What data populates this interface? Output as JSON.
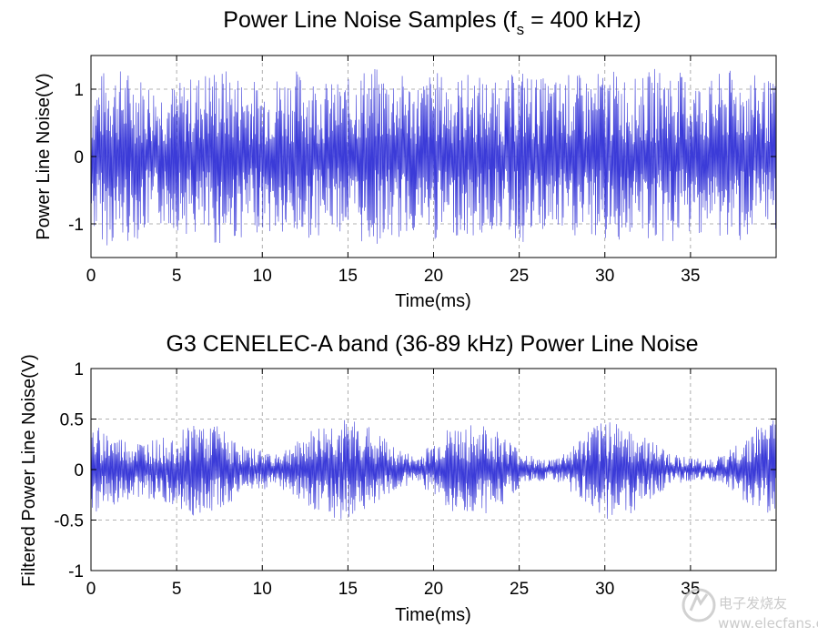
{
  "chart_data": [
    {
      "type": "line",
      "title": "Power Line Noise Samples (f",
      "title_subscript": "s",
      "title_tail": " = 400 kHz)",
      "xlabel": "Time(ms)",
      "ylabel": "Power Line Noise(V)",
      "xlim": [
        0,
        40
      ],
      "ylim": [
        -1.5,
        1.5
      ],
      "xticks": [
        0,
        5,
        10,
        15,
        20,
        25,
        30,
        35
      ],
      "xtick_labels": [
        "0",
        "5",
        "10",
        "15",
        "20",
        "25",
        "30",
        "35"
      ],
      "yticks": [
        -1,
        0,
        1
      ],
      "ytick_labels": [
        "-1",
        "0",
        "1"
      ],
      "grid": true,
      "line_color": "#3b3bd8",
      "envelope": {
        "t_ms": [
          0,
          1,
          2,
          3,
          4,
          5,
          6,
          7,
          8,
          9,
          10,
          11,
          12,
          13,
          14,
          15,
          16,
          17,
          18,
          19,
          20,
          21,
          22,
          23,
          24,
          25,
          26,
          27,
          28,
          29,
          30,
          31,
          32,
          33,
          34,
          35,
          36,
          37,
          38,
          39,
          40
        ],
        "amplitude_v": [
          1.1,
          1.35,
          1.3,
          1.2,
          1.05,
          1.1,
          1.2,
          1.35,
          1.3,
          1.2,
          1.1,
          1.25,
          1.3,
          1.2,
          1.1,
          1.15,
          1.35,
          1.3,
          1.25,
          1.1,
          1.3,
          1.15,
          1.25,
          1.2,
          1.05,
          1.35,
          1.2,
          1.15,
          1.25,
          1.2,
          1.3,
          1.25,
          1.15,
          1.35,
          1.3,
          1.2,
          1.1,
          1.3,
          1.25,
          1.2,
          1.1
        ]
      }
    },
    {
      "type": "line",
      "title": "G3 CENELEC-A band (36-89 kHz) Power Line Noise",
      "xlabel": "Time(ms)",
      "ylabel": "Filtered Power Line Noise(V)",
      "xlim": [
        0,
        40
      ],
      "ylim": [
        -1,
        1
      ],
      "xticks": [
        0,
        5,
        10,
        15,
        20,
        25,
        30,
        35
      ],
      "xtick_labels": [
        "0",
        "5",
        "10",
        "15",
        "20",
        "25",
        "30",
        "35"
      ],
      "yticks": [
        -1,
        -0.5,
        0,
        0.5,
        1
      ],
      "ytick_labels": [
        "-1",
        "-0.5",
        "0",
        "0.5",
        "1"
      ],
      "grid": true,
      "line_color": "#3b3bd8",
      "envelope": {
        "t_ms": [
          0,
          1,
          2,
          3,
          4,
          5,
          6,
          7,
          8,
          9,
          10,
          11,
          12,
          13,
          14,
          15,
          16,
          17,
          18,
          19,
          20,
          21,
          22,
          23,
          24,
          25,
          26,
          27,
          28,
          29,
          30,
          31,
          32,
          33,
          34,
          35,
          36,
          37,
          38,
          39,
          40
        ],
        "amplitude_v": [
          0.45,
          0.38,
          0.3,
          0.28,
          0.3,
          0.38,
          0.5,
          0.48,
          0.35,
          0.22,
          0.2,
          0.18,
          0.28,
          0.4,
          0.48,
          0.5,
          0.45,
          0.33,
          0.2,
          0.12,
          0.28,
          0.42,
          0.45,
          0.45,
          0.35,
          0.2,
          0.12,
          0.1,
          0.22,
          0.38,
          0.52,
          0.5,
          0.38,
          0.25,
          0.15,
          0.12,
          0.1,
          0.15,
          0.3,
          0.45,
          0.5
        ]
      }
    }
  ],
  "watermark": {
    "text": "电子发烧友",
    "url_text": "www.elecfans.com"
  }
}
